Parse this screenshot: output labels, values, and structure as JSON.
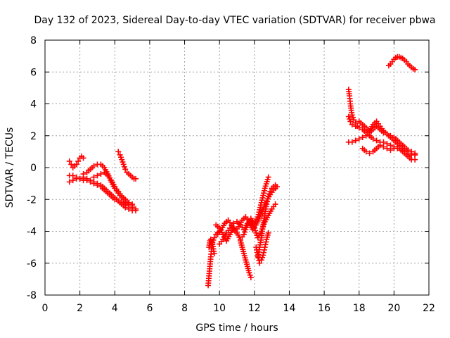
{
  "chart_data": {
    "type": "scatter",
    "title": "Day 132 of 2023, Sidereal Day-to-day VTEC variation (SDTVAR) for receiver pbwa",
    "xlabel": "GPS time / hours",
    "ylabel": "SDTVAR / TECUs",
    "xlim": [
      0,
      22
    ],
    "ylim": [
      -8,
      8
    ],
    "xticks": [
      0,
      2,
      4,
      6,
      8,
      10,
      12,
      14,
      16,
      18,
      20,
      22
    ],
    "yticks": [
      -8,
      -6,
      -4,
      -2,
      0,
      2,
      4,
      6,
      8
    ],
    "grid": true,
    "marker": "+",
    "color": "#ff0000",
    "series": [
      {
        "x": [
          1.4,
          1.6,
          1.8,
          2.0,
          2.2,
          2.4,
          2.6,
          2.8,
          3.0,
          3.2,
          3.4,
          3.6,
          3.8,
          4.0,
          4.2,
          4.4,
          4.6,
          4.8,
          5.0,
          5.2
        ],
        "y": [
          -0.9,
          -0.8,
          -0.7,
          -0.7,
          -0.6,
          -0.7,
          -0.8,
          -0.9,
          -1.0,
          -1.1,
          -1.3,
          -1.5,
          -1.7,
          -1.9,
          -2.1,
          -2.3,
          -2.5,
          -2.6,
          -2.7,
          -2.7
        ]
      },
      {
        "x": [
          1.4,
          1.6,
          1.8,
          2.0,
          2.2,
          2.4,
          2.6,
          2.8,
          3.0,
          3.2,
          3.4,
          3.6,
          3.8,
          4.0,
          4.2,
          4.4,
          4.6,
          4.8,
          5.0,
          5.2
        ],
        "y": [
          -0.5,
          -0.5,
          -0.6,
          -0.7,
          -0.8,
          -0.8,
          -0.9,
          -1.0,
          -1.1,
          -1.2,
          -1.4,
          -1.6,
          -1.8,
          -2.0,
          -2.1,
          -2.2,
          -2.3,
          -2.4,
          -2.5,
          -2.6
        ]
      },
      {
        "x": [
          1.4,
          1.5,
          1.6,
          1.7,
          1.8,
          1.9,
          2.0,
          2.1,
          2.2
        ],
        "y": [
          0.4,
          0.2,
          0.0,
          0.1,
          0.2,
          0.4,
          0.6,
          0.7,
          0.6
        ]
      },
      {
        "x": [
          2.2,
          2.4,
          2.6,
          2.8,
          3.0,
          3.2,
          3.4,
          3.6,
          3.8,
          4.0,
          4.2,
          4.4,
          4.6,
          4.8,
          5.0
        ],
        "y": [
          -0.4,
          -0.3,
          -0.1,
          0.1,
          0.2,
          0.2,
          0.0,
          -0.4,
          -0.9,
          -1.3,
          -1.6,
          -1.9,
          -2.1,
          -2.3,
          -2.4
        ]
      },
      {
        "x": [
          2.8,
          3.0,
          3.2,
          3.4,
          3.6,
          3.8,
          4.0,
          4.2,
          4.4,
          4.6,
          4.8,
          5.0
        ],
        "y": [
          -0.6,
          -0.5,
          -0.4,
          -0.3,
          -0.5,
          -0.8,
          -1.2,
          -1.5,
          -1.8,
          -2.0,
          -2.2,
          -2.3
        ]
      },
      {
        "x": [
          4.2,
          4.3,
          4.4,
          4.5,
          4.6,
          4.7,
          4.8,
          4.9,
          5.0,
          5.1,
          5.2
        ],
        "y": [
          1.0,
          0.8,
          0.5,
          0.2,
          -0.1,
          -0.3,
          -0.4,
          -0.5,
          -0.6,
          -0.7,
          -0.7
        ]
      },
      {
        "x": [
          9.35,
          9.4,
          9.45,
          9.5,
          9.55,
          9.6,
          9.7,
          9.8,
          9.9,
          10.0
        ],
        "y": [
          -7.4,
          -6.8,
          -6.2,
          -5.6,
          -5.1,
          -4.7,
          -4.4,
          -4.2,
          -4.1,
          -4.0
        ]
      },
      {
        "x": [
          9.4,
          9.45,
          9.5,
          9.6,
          9.7
        ],
        "y": [
          -5.0,
          -4.6,
          -4.5,
          -4.8,
          -5.4
        ]
      },
      {
        "x": [
          9.8,
          10.0,
          10.2,
          10.4,
          10.6,
          10.8,
          11.0,
          11.2,
          11.4,
          11.6,
          11.8,
          12.0,
          12.2,
          12.4,
          12.6,
          12.8,
          13.0,
          13.2
        ],
        "y": [
          -3.6,
          -3.8,
          -4.2,
          -4.6,
          -4.2,
          -3.8,
          -4.1,
          -4.5,
          -4.2,
          -3.6,
          -3.3,
          -3.8,
          -4.4,
          -4.0,
          -3.4,
          -3.0,
          -2.6,
          -2.3
        ]
      },
      {
        "x": [
          9.9,
          10.1,
          10.3,
          10.5,
          10.7,
          10.9,
          11.1,
          11.3,
          11.5,
          11.7,
          11.9,
          12.1,
          12.3,
          12.5,
          12.7,
          12.9,
          13.1,
          13.3
        ],
        "y": [
          -4.2,
          -3.9,
          -3.5,
          -3.3,
          -3.6,
          -4.0,
          -3.7,
          -3.3,
          -3.1,
          -3.4,
          -3.9,
          -3.6,
          -3.1,
          -2.6,
          -2.1,
          -1.7,
          -1.4,
          -1.2
        ]
      },
      {
        "x": [
          10.0,
          10.2,
          10.4,
          10.6,
          10.8,
          11.0,
          11.2,
          11.4,
          11.6,
          11.8,
          12.0,
          12.2,
          12.4,
          12.6,
          12.8
        ],
        "y": [
          -4.8,
          -4.5,
          -4.1,
          -3.8,
          -3.5,
          -3.4,
          -3.6,
          -3.9,
          -3.5,
          -3.2,
          -3.5,
          -3.1,
          -2.2,
          -1.3,
          -0.6
        ]
      },
      {
        "x": [
          11.2,
          11.3,
          11.4,
          11.5,
          11.6,
          11.7,
          11.8
        ],
        "y": [
          -4.6,
          -5.0,
          -5.4,
          -5.8,
          -6.2,
          -6.6,
          -6.9
        ]
      },
      {
        "x": [
          12.2,
          12.3,
          12.4,
          12.5,
          12.6,
          12.7,
          12.8,
          12.9,
          13.0,
          13.1,
          13.2
        ],
        "y": [
          -5.6,
          -5.0,
          -4.4,
          -3.6,
          -2.9,
          -2.3,
          -1.8,
          -1.5,
          -1.3,
          -1.2,
          -1.1
        ]
      },
      {
        "x": [
          12.1,
          12.2,
          12.3,
          12.4,
          12.5,
          12.6,
          12.7,
          12.8
        ],
        "y": [
          -5.0,
          -5.5,
          -6.0,
          -5.8,
          -5.5,
          -5.0,
          -4.5,
          -4.1
        ]
      },
      {
        "x": [
          17.4,
          17.45,
          17.5,
          17.55,
          17.6,
          17.7,
          17.8,
          17.9,
          18.0
        ],
        "y": [
          4.9,
          4.5,
          4.0,
          3.6,
          3.3,
          3.0,
          2.8,
          2.6,
          2.5
        ]
      },
      {
        "x": [
          17.4,
          17.5,
          17.6,
          17.8,
          18.0,
          18.2,
          18.4,
          18.6,
          18.8,
          19.0,
          19.2,
          19.4,
          19.6,
          19.8,
          20.0,
          20.2,
          20.4,
          20.6,
          20.8,
          21.0,
          21.2
        ],
        "y": [
          3.2,
          2.9,
          2.7,
          2.6,
          2.5,
          2.4,
          2.2,
          2.0,
          1.8,
          1.7,
          1.6,
          1.6,
          1.5,
          1.4,
          1.3,
          1.2,
          1.1,
          1.0,
          0.9,
          0.8,
          0.8
        ]
      },
      {
        "x": [
          17.4,
          17.6,
          17.8,
          18.0,
          18.2,
          18.4,
          18.6,
          18.8,
          19.0,
          19.2,
          19.4,
          19.6,
          19.8,
          20.0,
          20.2,
          20.4,
          20.6,
          20.8,
          21.0,
          21.2
        ],
        "y": [
          1.6,
          1.6,
          1.7,
          1.8,
          1.9,
          2.0,
          2.2,
          2.4,
          2.6,
          2.4,
          2.2,
          2.1,
          1.9,
          1.7,
          1.5,
          1.3,
          1.2,
          1.0,
          0.9,
          0.8
        ]
      },
      {
        "x": [
          18.0,
          18.2,
          18.4,
          18.6,
          18.8,
          19.0,
          19.2,
          19.4,
          19.6,
          19.8,
          20.0,
          20.2,
          20.4,
          20.6,
          20.8,
          21.0,
          21.2
        ],
        "y": [
          2.9,
          2.7,
          2.5,
          2.3,
          2.7,
          2.9,
          2.6,
          2.3,
          2.1,
          2.0,
          1.9,
          1.7,
          1.5,
          1.3,
          1.1,
          1.0,
          0.9
        ]
      },
      {
        "x": [
          18.2,
          18.4,
          18.6,
          18.8,
          19.0,
          19.2,
          19.4,
          19.6,
          19.8,
          20.0,
          20.2,
          20.4,
          20.6,
          20.8,
          21.0,
          21.2
        ],
        "y": [
          1.2,
          1.0,
          0.9,
          1.0,
          1.2,
          1.4,
          1.3,
          1.2,
          1.1,
          1.2,
          1.3,
          1.1,
          0.9,
          0.7,
          0.5,
          0.5
        ]
      },
      {
        "x": [
          19.7,
          19.8,
          19.9,
          20.0,
          20.1,
          20.2,
          20.3,
          20.4,
          20.5,
          20.6,
          20.7,
          20.8,
          20.9,
          21.0,
          21.1,
          21.2
        ],
        "y": [
          6.4,
          6.5,
          6.65,
          6.8,
          6.9,
          6.95,
          6.95,
          6.9,
          6.85,
          6.75,
          6.65,
          6.5,
          6.4,
          6.3,
          6.2,
          6.15
        ]
      }
    ]
  }
}
